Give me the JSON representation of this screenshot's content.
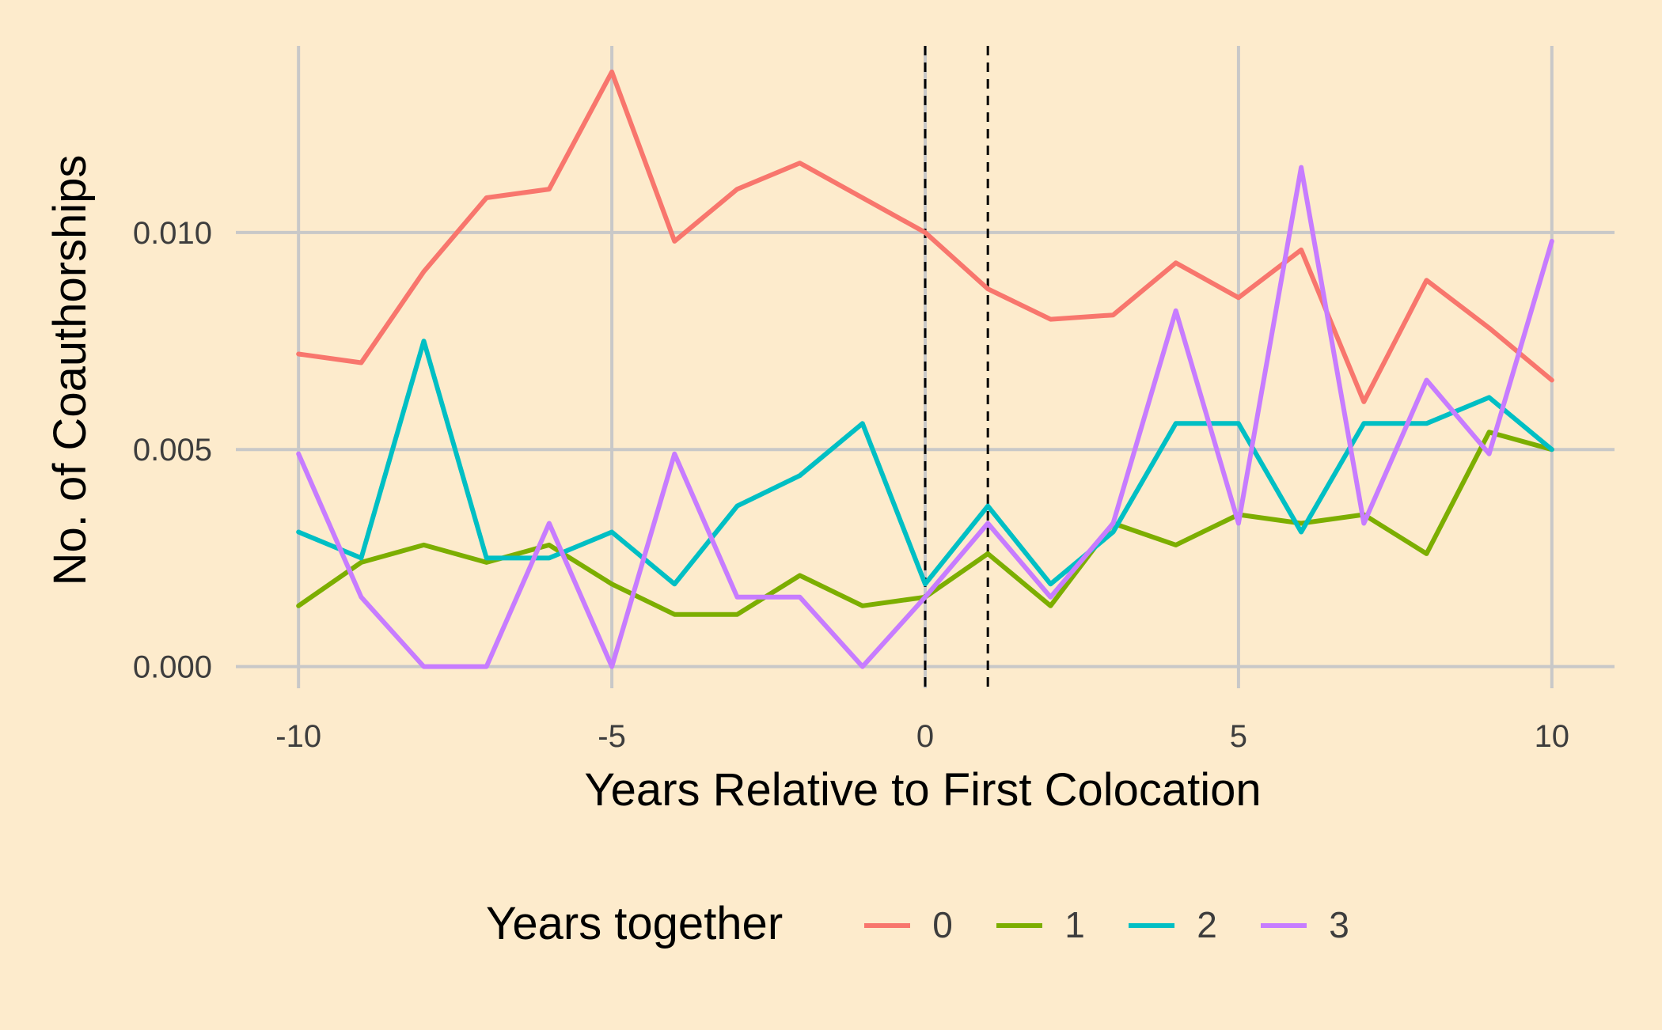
{
  "chart_data": {
    "type": "line",
    "title": "",
    "xlabel": "Years Relative to First Colocation",
    "ylabel": "No. of Coauthorships",
    "xlim": [
      -11,
      11
    ],
    "ylim": [
      -0.0005,
      0.0143
    ],
    "x_ticks": [
      -10,
      -5,
      0,
      5,
      10
    ],
    "x_tick_labels": [
      "-10",
      "-5",
      "0",
      "5",
      "10"
    ],
    "y_ticks": [
      0.0,
      0.005,
      0.01
    ],
    "y_tick_labels": [
      "0.000",
      "0.005",
      "0.010"
    ],
    "grid": true,
    "vlines": [
      0,
      1
    ],
    "legend": {
      "title": "Years together",
      "position": "bottom"
    },
    "x": [
      -10,
      -9,
      -8,
      -7,
      -6,
      -5,
      -4,
      -3,
      -2,
      -1,
      0,
      1,
      2,
      3,
      4,
      5,
      6,
      7,
      8,
      9,
      10
    ],
    "series": [
      {
        "name": "0",
        "color": "#F8766D",
        "values": [
          0.0072,
          0.007,
          0.0091,
          0.0108,
          0.011,
          0.0137,
          0.0098,
          0.011,
          0.0116,
          0.0108,
          0.01,
          0.0087,
          0.008,
          0.0081,
          0.0093,
          0.0085,
          0.0096,
          0.0061,
          0.0089,
          0.0078,
          0.0066
        ]
      },
      {
        "name": "1",
        "color": "#7CAE00",
        "values": [
          0.0014,
          0.0024,
          0.0028,
          0.0024,
          0.0028,
          0.0019,
          0.0012,
          0.0012,
          0.0021,
          0.0014,
          0.0016,
          0.0026,
          0.0014,
          0.0033,
          0.0028,
          0.0035,
          0.0033,
          0.0035,
          0.0026,
          0.0054,
          0.005
        ]
      },
      {
        "name": "2",
        "color": "#00BFC4",
        "values": [
          0.0031,
          0.0025,
          0.0075,
          0.0025,
          0.0025,
          0.0031,
          0.0019,
          0.0037,
          0.0044,
          0.0056,
          0.0019,
          0.0037,
          0.0019,
          0.0031,
          0.0056,
          0.0056,
          0.0031,
          0.0056,
          0.0056,
          0.0062,
          0.005
        ]
      },
      {
        "name": "3",
        "color": "#C77CFF",
        "values": [
          0.0049,
          0.0016,
          0.0,
          0.0,
          0.0033,
          0.0,
          0.0049,
          0.0016,
          0.0016,
          0.0,
          0.0016,
          0.0033,
          0.0016,
          0.0033,
          0.0082,
          0.0033,
          0.0115,
          0.0033,
          0.0066,
          0.0049,
          0.0098
        ]
      }
    ]
  }
}
